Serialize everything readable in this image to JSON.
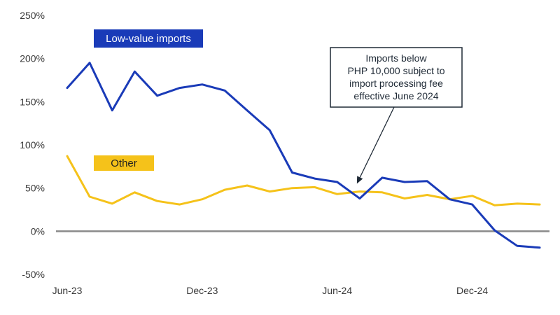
{
  "chart_data": {
    "type": "line",
    "title": "",
    "xlabel": "",
    "ylabel": "",
    "ylim": [
      -50,
      250
    ],
    "yticks": [
      -50,
      0,
      50,
      100,
      150,
      200,
      250
    ],
    "ytick_labels": [
      "-50%",
      "0%",
      "50%",
      "100%",
      "150%",
      "200%",
      "250%"
    ],
    "x_count": 22,
    "xtick_labels": [
      {
        "index": 0,
        "label": "Jun-23"
      },
      {
        "index": 6,
        "label": "Dec-23"
      },
      {
        "index": 12,
        "label": "Jun-24"
      },
      {
        "index": 18,
        "label": "Dec-24"
      }
    ],
    "series": [
      {
        "name": "Low-value imports",
        "color": "#1a3bb8",
        "values": [
          166,
          195,
          140,
          185,
          157,
          166,
          170,
          163,
          140,
          117,
          68,
          61,
          57,
          38,
          62,
          57,
          58,
          37,
          31,
          1,
          -17,
          -19
        ]
      },
      {
        "name": "Other",
        "color": "#f5c21a",
        "values": [
          87,
          40,
          32,
          45,
          35,
          31,
          37,
          48,
          53,
          46,
          50,
          51,
          43,
          46,
          45,
          38,
          42,
          37,
          41,
          30,
          32,
          31
        ]
      }
    ],
    "annotations": [
      {
        "lines": [
          "Imports below",
          "PHP 10,000 subject to",
          "import processing fee",
          "effective June 2024"
        ],
        "arrow_target_index": 13,
        "arrow_target_value": 47
      }
    ],
    "zero_line_color": "#8a8a8a"
  }
}
